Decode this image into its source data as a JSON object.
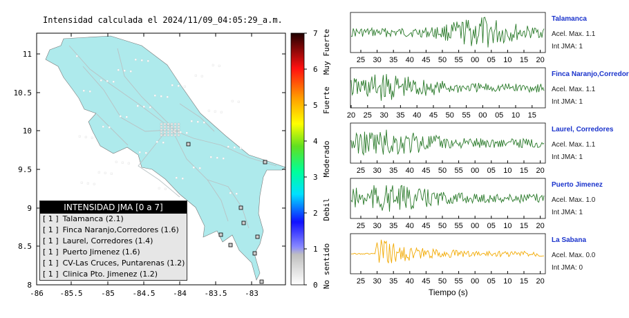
{
  "map": {
    "title": "Intensidad calculada el 2024/11/09_04:05:29_a.m.",
    "xticks": [
      "-86",
      "-85.5",
      "-85",
      "-84.5",
      "-84",
      "-83.5",
      "-83"
    ],
    "yticks": [
      "11",
      "10.5",
      "10",
      "9.5",
      "9",
      "8.5",
      "8"
    ],
    "land_color": "#aeeaec",
    "sea_color": "#ffffff"
  },
  "colorbar": {
    "ticks": [
      "0",
      "1",
      "2",
      "3",
      "4",
      "5",
      "6",
      "7"
    ],
    "labels": [
      "No sentido",
      "Debil",
      "Moderado",
      "Fuerte",
      "Muy Fuerte"
    ]
  },
  "legend": {
    "title": "INTENSIDAD JMA [0 a 7]",
    "items": [
      {
        "badge": "[ 1 ]",
        "text": "Talamanca (2.1)"
      },
      {
        "badge": "[ 1 ]",
        "text": "Finca Naranjo,Corredores (1.6)"
      },
      {
        "badge": "[ 1 ]",
        "text": "Laurel, Corredores (1.4)"
      },
      {
        "badge": "[ 1 ]",
        "text": "Puerto Jimenez (1.6)"
      },
      {
        "badge": "[ 1 ]",
        "text": "CV-Las Cruces, Puntarenas (1.2)"
      },
      {
        "badge": "[ 1 ]",
        "text": "Clinica Pto. Jimenez (1.2)"
      }
    ]
  },
  "chart_data": {
    "type": "line",
    "xlabel": "Tiempo (s)",
    "stations": [
      {
        "name": "Talamanca",
        "acel": "Acel. Max. 1.1",
        "jma": "Int JMA: 1",
        "color": "#2a7a2a",
        "ticks": [
          "25",
          "30",
          "35",
          "40",
          "45",
          "50",
          "55",
          "00",
          "05",
          "10",
          "15",
          "20"
        ]
      },
      {
        "name": "Finca Naranjo,Corredores",
        "acel": "Acel. Max. 1.1",
        "jma": "Int JMA: 1",
        "color": "#2a7a2a",
        "ticks": [
          "20",
          "25",
          "30",
          "35",
          "40",
          "45",
          "50",
          "55",
          "00",
          "05",
          "10",
          "15"
        ]
      },
      {
        "name": "Laurel, Corredores",
        "acel": "Acel. Max. 1.1",
        "jma": "Int JMA: 1",
        "color": "#2a7a2a",
        "ticks": [
          "25",
          "30",
          "35",
          "40",
          "45",
          "50",
          "55",
          "00",
          "05",
          "10",
          "15",
          "20"
        ]
      },
      {
        "name": "Puerto Jimenez",
        "acel": "Acel. Max. 1.0",
        "jma": "Int JMA: 1",
        "color": "#2a7a2a",
        "ticks": [
          "25",
          "30",
          "35",
          "40",
          "45",
          "50",
          "55",
          "00",
          "05",
          "10",
          "15",
          "20"
        ]
      },
      {
        "name": "La Sabana",
        "acel": "Acel. Max. 0.0",
        "jma": "Int JMA: 0",
        "color": "#f2a900",
        "ticks": [
          "25",
          "30",
          "35",
          "40",
          "45",
          "50",
          "55",
          "00",
          "05",
          "10",
          "15",
          "20"
        ]
      }
    ]
  }
}
